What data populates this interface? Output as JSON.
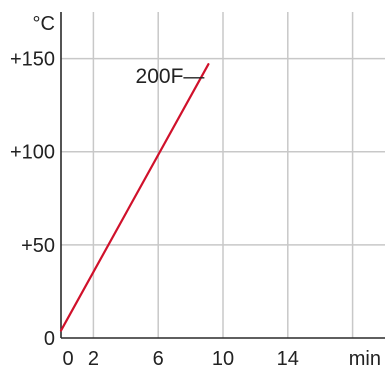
{
  "chart_data": {
    "type": "line",
    "title": "",
    "xlabel": "",
    "ylabel": "",
    "y_unit": "°C",
    "x_unit": "min",
    "xlim": [
      0,
      20
    ],
    "ylim": [
      0,
      175
    ],
    "x_ticks": [
      0,
      2,
      6,
      10,
      14
    ],
    "x_tick_labels": [
      "0",
      "2",
      "6",
      "10",
      "14"
    ],
    "y_ticks": [
      0,
      50,
      100,
      150
    ],
    "y_tick_labels": [
      "0",
      "+50",
      "+100",
      "+150"
    ],
    "grid": true,
    "series": [
      {
        "name": "200F",
        "label_text": "200F—",
        "color": "#d0112b",
        "x": [
          0,
          9.1
        ],
        "y": [
          4,
          147
        ]
      }
    ]
  }
}
